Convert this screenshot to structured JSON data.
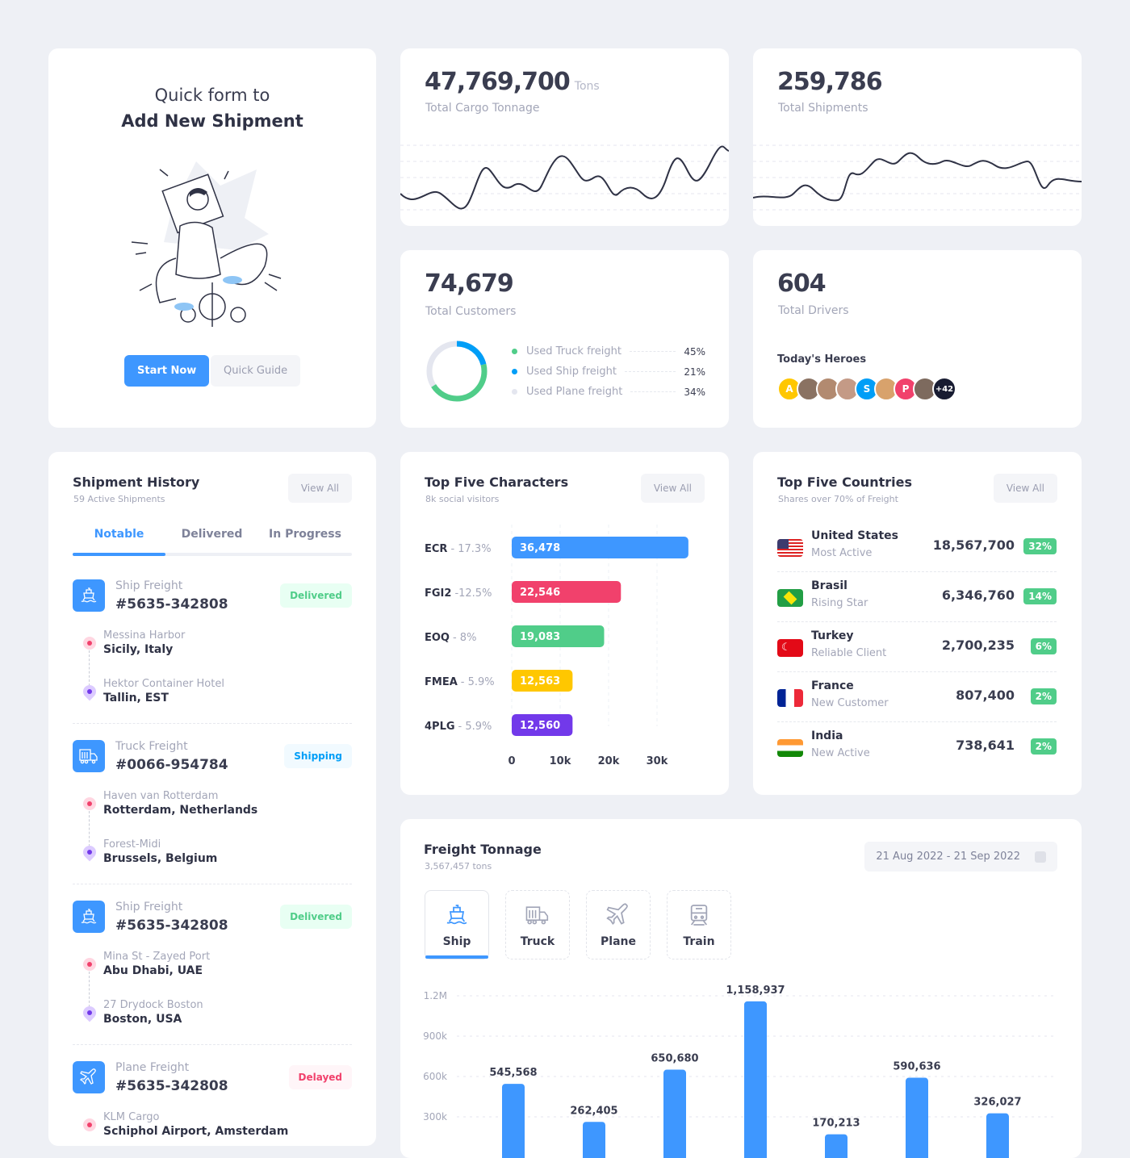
{
  "quick_form": {
    "line1": "Quick form to",
    "line2": "Add New Shipment",
    "start_label": "Start Now",
    "guide_label": "Quick Guide"
  },
  "stats": {
    "cargo": {
      "value": "47,769,700",
      "unit": "Tons",
      "label": "Total Cargo Tonnage"
    },
    "shipments": {
      "value": "259,786",
      "label": "Total Shipments"
    },
    "customers": {
      "value": "74,679",
      "label": "Total Customers",
      "legend": [
        {
          "label": "Used Truck freight",
          "pct": "45%",
          "color": "#50cd89"
        },
        {
          "label": "Used Ship freight",
          "pct": "21%",
          "color": "#009ef7"
        },
        {
          "label": "Used Plane freight",
          "pct": "34%",
          "color": "#e4e6ef"
        }
      ]
    },
    "drivers": {
      "value": "604",
      "label": "Total Drivers",
      "heroes_title": "Today's Heroes",
      "avatars": [
        {
          "initial": "A",
          "color": "#ffc700"
        },
        {
          "initial": "",
          "color": "#8a7262"
        },
        {
          "initial": "",
          "color": "#b28a70"
        },
        {
          "initial": "",
          "color": "#c49a86"
        },
        {
          "initial": "S",
          "color": "#009ef7"
        },
        {
          "initial": "",
          "color": "#d8a26c"
        },
        {
          "initial": "P",
          "color": "#f1416c"
        },
        {
          "initial": "",
          "color": "#7d6a5e"
        },
        {
          "initial": "+42",
          "color": "#181c32"
        }
      ]
    }
  },
  "shipment_history": {
    "title": "Shipment History",
    "subtitle": "59 Active Shipments",
    "view_all": "View All",
    "tabs": [
      "Notable",
      "Delivered",
      "In Progress"
    ],
    "active_tab": "Notable",
    "items": [
      {
        "type": "Ship Freight",
        "number": "#5635-342808",
        "status": "Delivered",
        "icon": "ship-icon",
        "from_place": "Messina Harbor",
        "from_city": "Sicily, Italy",
        "to_place": "Hektor Container Hotel",
        "to_city": "Tallin, EST"
      },
      {
        "type": "Truck Freight",
        "number": "#0066-954784",
        "status": "Shipping",
        "icon": "truck-icon",
        "from_place": "Haven van Rotterdam",
        "from_city": "Rotterdam, Netherlands",
        "to_place": "Forest-Midi",
        "to_city": "Brussels, Belgium"
      },
      {
        "type": "Ship Freight",
        "number": "#5635-342808",
        "status": "Delivered",
        "icon": "ship-icon",
        "from_place": "Mina St - Zayed Port",
        "from_city": "Abu Dhabi, UAE",
        "to_place": "27 Drydock Boston",
        "to_city": "Boston, USA"
      },
      {
        "type": "Plane Freight",
        "number": "#5635-342808",
        "status": "Delayed",
        "icon": "plane-icon",
        "from_place": "KLM Cargo",
        "from_city": "Schiphol Airport, Amsterdam"
      }
    ],
    "status_colors": {
      "Delivered": [
        "#50cd89",
        "#e8fff3"
      ],
      "Shipping": [
        "#009ef7",
        "#f1faff"
      ],
      "Delayed": [
        "#f1416c",
        "#fff5f8"
      ]
    }
  },
  "top_characters": {
    "title": "Top Five Characters",
    "subtitle": "8k social visitors",
    "view_all": "View All"
  },
  "top_countries": {
    "title": "Top Five Countries",
    "subtitle": "Shares over 70% of Freight",
    "view_all": "View All",
    "rows": [
      {
        "name": "United States",
        "desc": "Most Active",
        "value": "18,567,700",
        "pct": "32%",
        "flag": "us"
      },
      {
        "name": "Brasil",
        "desc": "Rising Star",
        "value": "6,346,760",
        "pct": "14%",
        "flag": "br"
      },
      {
        "name": "Turkey",
        "desc": "Reliable Client",
        "value": "2,700,235",
        "pct": "6%",
        "flag": "tr"
      },
      {
        "name": "France",
        "desc": "New Customer",
        "value": "807,400",
        "pct": "2%",
        "flag": "fr"
      },
      {
        "name": "India",
        "desc": "New Active",
        "value": "738,641",
        "pct": "2%",
        "flag": "in"
      }
    ]
  },
  "freight": {
    "title": "Freight Tonnage",
    "subtitle": "3,567,457 tons",
    "date_range": "21 Aug 2022 - 21 Sep 2022",
    "modes": [
      {
        "label": "Ship",
        "icon": "ship-icon"
      },
      {
        "label": "Truck",
        "icon": "truck-icon"
      },
      {
        "label": "Plane",
        "icon": "plane-icon"
      },
      {
        "label": "Train",
        "icon": "train-icon"
      }
    ],
    "active_mode": "Ship"
  },
  "chart_data": [
    {
      "type": "bar",
      "orientation": "horizontal",
      "title": "Top Five Characters",
      "categories": [
        "ECR",
        "FGI2",
        "EOQ",
        "FMEA",
        "4PLG"
      ],
      "category_notes": [
        "- 17.3%",
        "-12.5%",
        "- 8%",
        "- 5.9%",
        "- 5.9%"
      ],
      "values": [
        36478,
        22546,
        19083,
        12563,
        12560
      ],
      "value_labels": [
        "36,478",
        "22,546",
        "19,083",
        "12,563",
        "12,560"
      ],
      "colors": [
        "#3e97ff",
        "#f1416c",
        "#50cd89",
        "#ffc700",
        "#7239ea"
      ],
      "xticks": [
        "0",
        "10k",
        "20k",
        "30k"
      ],
      "xtick_values": [
        0,
        10000,
        20000,
        30000
      ],
      "grid": true
    },
    {
      "type": "bar",
      "title": "Freight Tonnage",
      "values": [
        545568,
        262405,
        650680,
        1158937,
        170213,
        590636,
        326027
      ],
      "value_labels": [
        "545,568",
        "262,405",
        "650,680",
        "1,158,937",
        "170,213",
        "590,636",
        "326,027"
      ],
      "yticks": [
        "1.2M",
        "900k",
        "600k",
        "300k"
      ],
      "ytick_values": [
        1200000,
        900000,
        600000,
        300000
      ],
      "color": "#3e97ff",
      "grid": true
    }
  ]
}
